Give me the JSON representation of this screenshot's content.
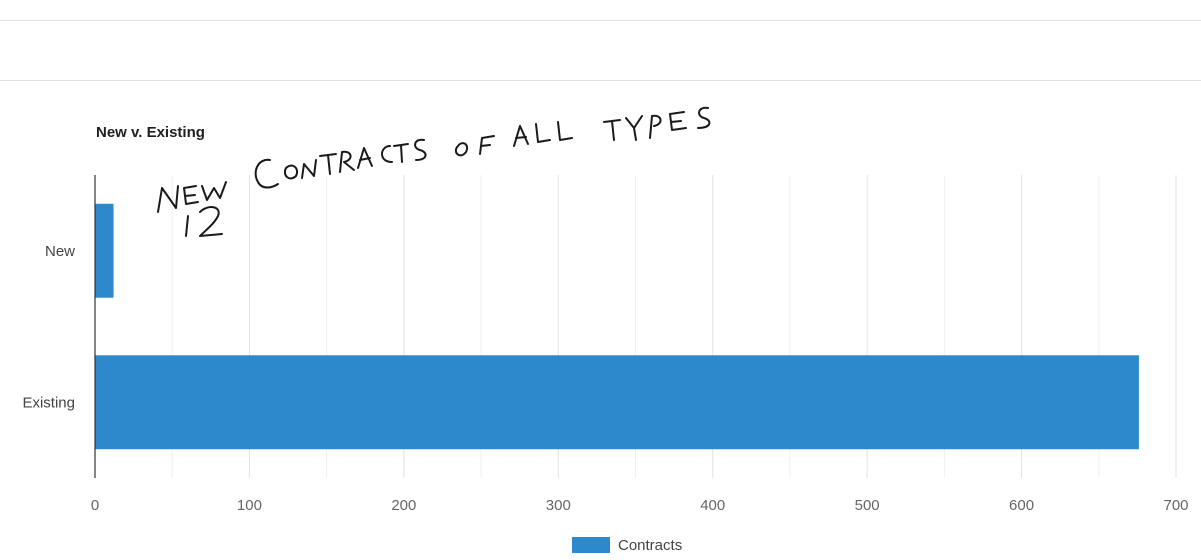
{
  "chart_data": {
    "type": "bar",
    "orientation": "horizontal",
    "title": "New v. Existing",
    "categories": [
      "New",
      "Existing"
    ],
    "series": [
      {
        "name": "Contracts",
        "values": [
          12,
          676
        ]
      }
    ],
    "xlim": [
      0,
      700
    ],
    "x_ticks": [
      "0",
      "100",
      "200",
      "300",
      "400",
      "500",
      "600",
      "700"
    ],
    "grid": true,
    "legend_position": "bottom",
    "bar_color": "#2e89cc"
  },
  "annotation": {
    "line1": "NEW CONTRACTS OF ALL TYPES",
    "line2": "12"
  }
}
